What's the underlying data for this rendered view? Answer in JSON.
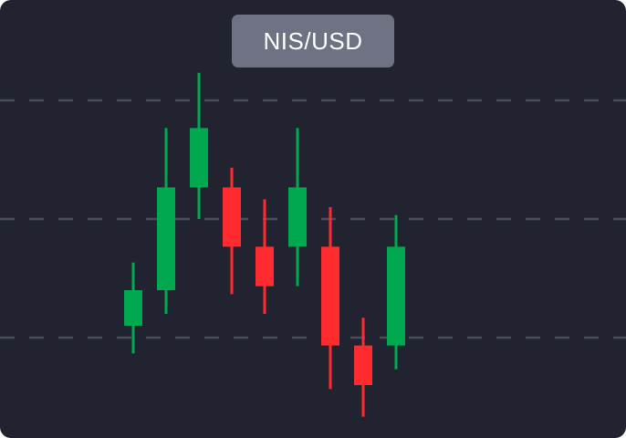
{
  "pair_label": "NIS/USD",
  "colors": {
    "background": "#212330",
    "badge": "#6e7283",
    "gridline": "#4a4d5e",
    "up": "#00a84f",
    "down": "#ff2b2e"
  },
  "chart_data": {
    "type": "candlestick",
    "grid": "horizontal-dashed",
    "gridlines": [
      70,
      40,
      10
    ],
    "y_range": [
      -20,
      100
    ],
    "candles": [
      {
        "open": 13,
        "close": 22,
        "high": 29,
        "low": 6
      },
      {
        "open": 22,
        "close": 48,
        "high": 63,
        "low": 16
      },
      {
        "open": 48,
        "close": 63,
        "high": 77,
        "low": 40
      },
      {
        "open": 48,
        "close": 33,
        "high": 53,
        "low": 21
      },
      {
        "open": 33,
        "close": 23,
        "high": 45,
        "low": 16
      },
      {
        "open": 33,
        "close": 48,
        "high": 63,
        "low": 23
      },
      {
        "open": 33,
        "close": 8,
        "high": 43,
        "low": -3
      },
      {
        "open": 8,
        "close": -2,
        "high": 15,
        "low": -10
      },
      {
        "open": 8,
        "close": 33,
        "high": 41,
        "low": 2
      }
    ]
  }
}
